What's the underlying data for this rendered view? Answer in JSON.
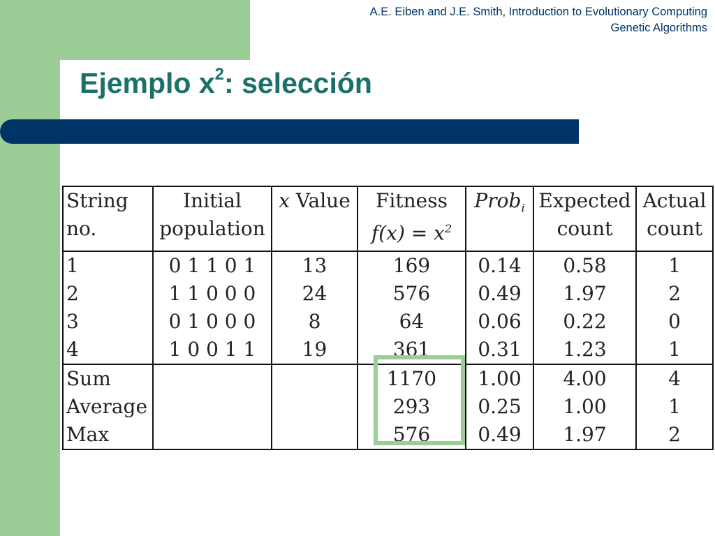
{
  "header": {
    "line1": "A.E. Eiben and J.E. Smith, Introduction to Evolutionary Computing",
    "line2": "Genetic Algorithms"
  },
  "title": {
    "prefix": "Ejemplo x",
    "sup": "2",
    "suffix": ": selección"
  },
  "table": {
    "headers": {
      "string_no": [
        "String",
        "no."
      ],
      "initial_population": [
        "Initial",
        "population"
      ],
      "x_value": {
        "var": "x",
        "text": " Value"
      },
      "fitness": {
        "line1": "Fitness",
        "line2": "f(x) = x",
        "line2_sup": "2"
      },
      "prob": {
        "base": "Prob",
        "sub": "i"
      },
      "expected_count": [
        "Expected",
        "count"
      ],
      "actual_count": [
        "Actual",
        "count"
      ]
    },
    "rows": [
      {
        "no": "1",
        "pop": "0 1 1 0 1",
        "x": "13",
        "fitness": "169",
        "prob": "0.14",
        "expected": "0.58",
        "actual": "1"
      },
      {
        "no": "2",
        "pop": "1 1 0 0 0",
        "x": "24",
        "fitness": "576",
        "prob": "0.49",
        "expected": "1.97",
        "actual": "2"
      },
      {
        "no": "3",
        "pop": "0 1 0 0 0",
        "x": "8",
        "fitness": "64",
        "prob": "0.06",
        "expected": "0.22",
        "actual": "0"
      },
      {
        "no": "4",
        "pop": "1 0 0 1 1",
        "x": "19",
        "fitness": "361",
        "prob": "0.31",
        "expected": "1.23",
        "actual": "1"
      }
    ],
    "summary": [
      {
        "label": "Sum",
        "fitness": "1170",
        "prob": "1.00",
        "expected": "4.00",
        "actual": "4"
      },
      {
        "label": "Average",
        "fitness": "293",
        "prob": "0.25",
        "expected": "1.00",
        "actual": "1"
      },
      {
        "label": "Max",
        "fitness": "576",
        "prob": "0.49",
        "expected": "1.97",
        "actual": "2"
      }
    ]
  },
  "colors": {
    "accent_green": "#9dcd96",
    "navy": "#003366",
    "title_teal": "#1b7069"
  }
}
